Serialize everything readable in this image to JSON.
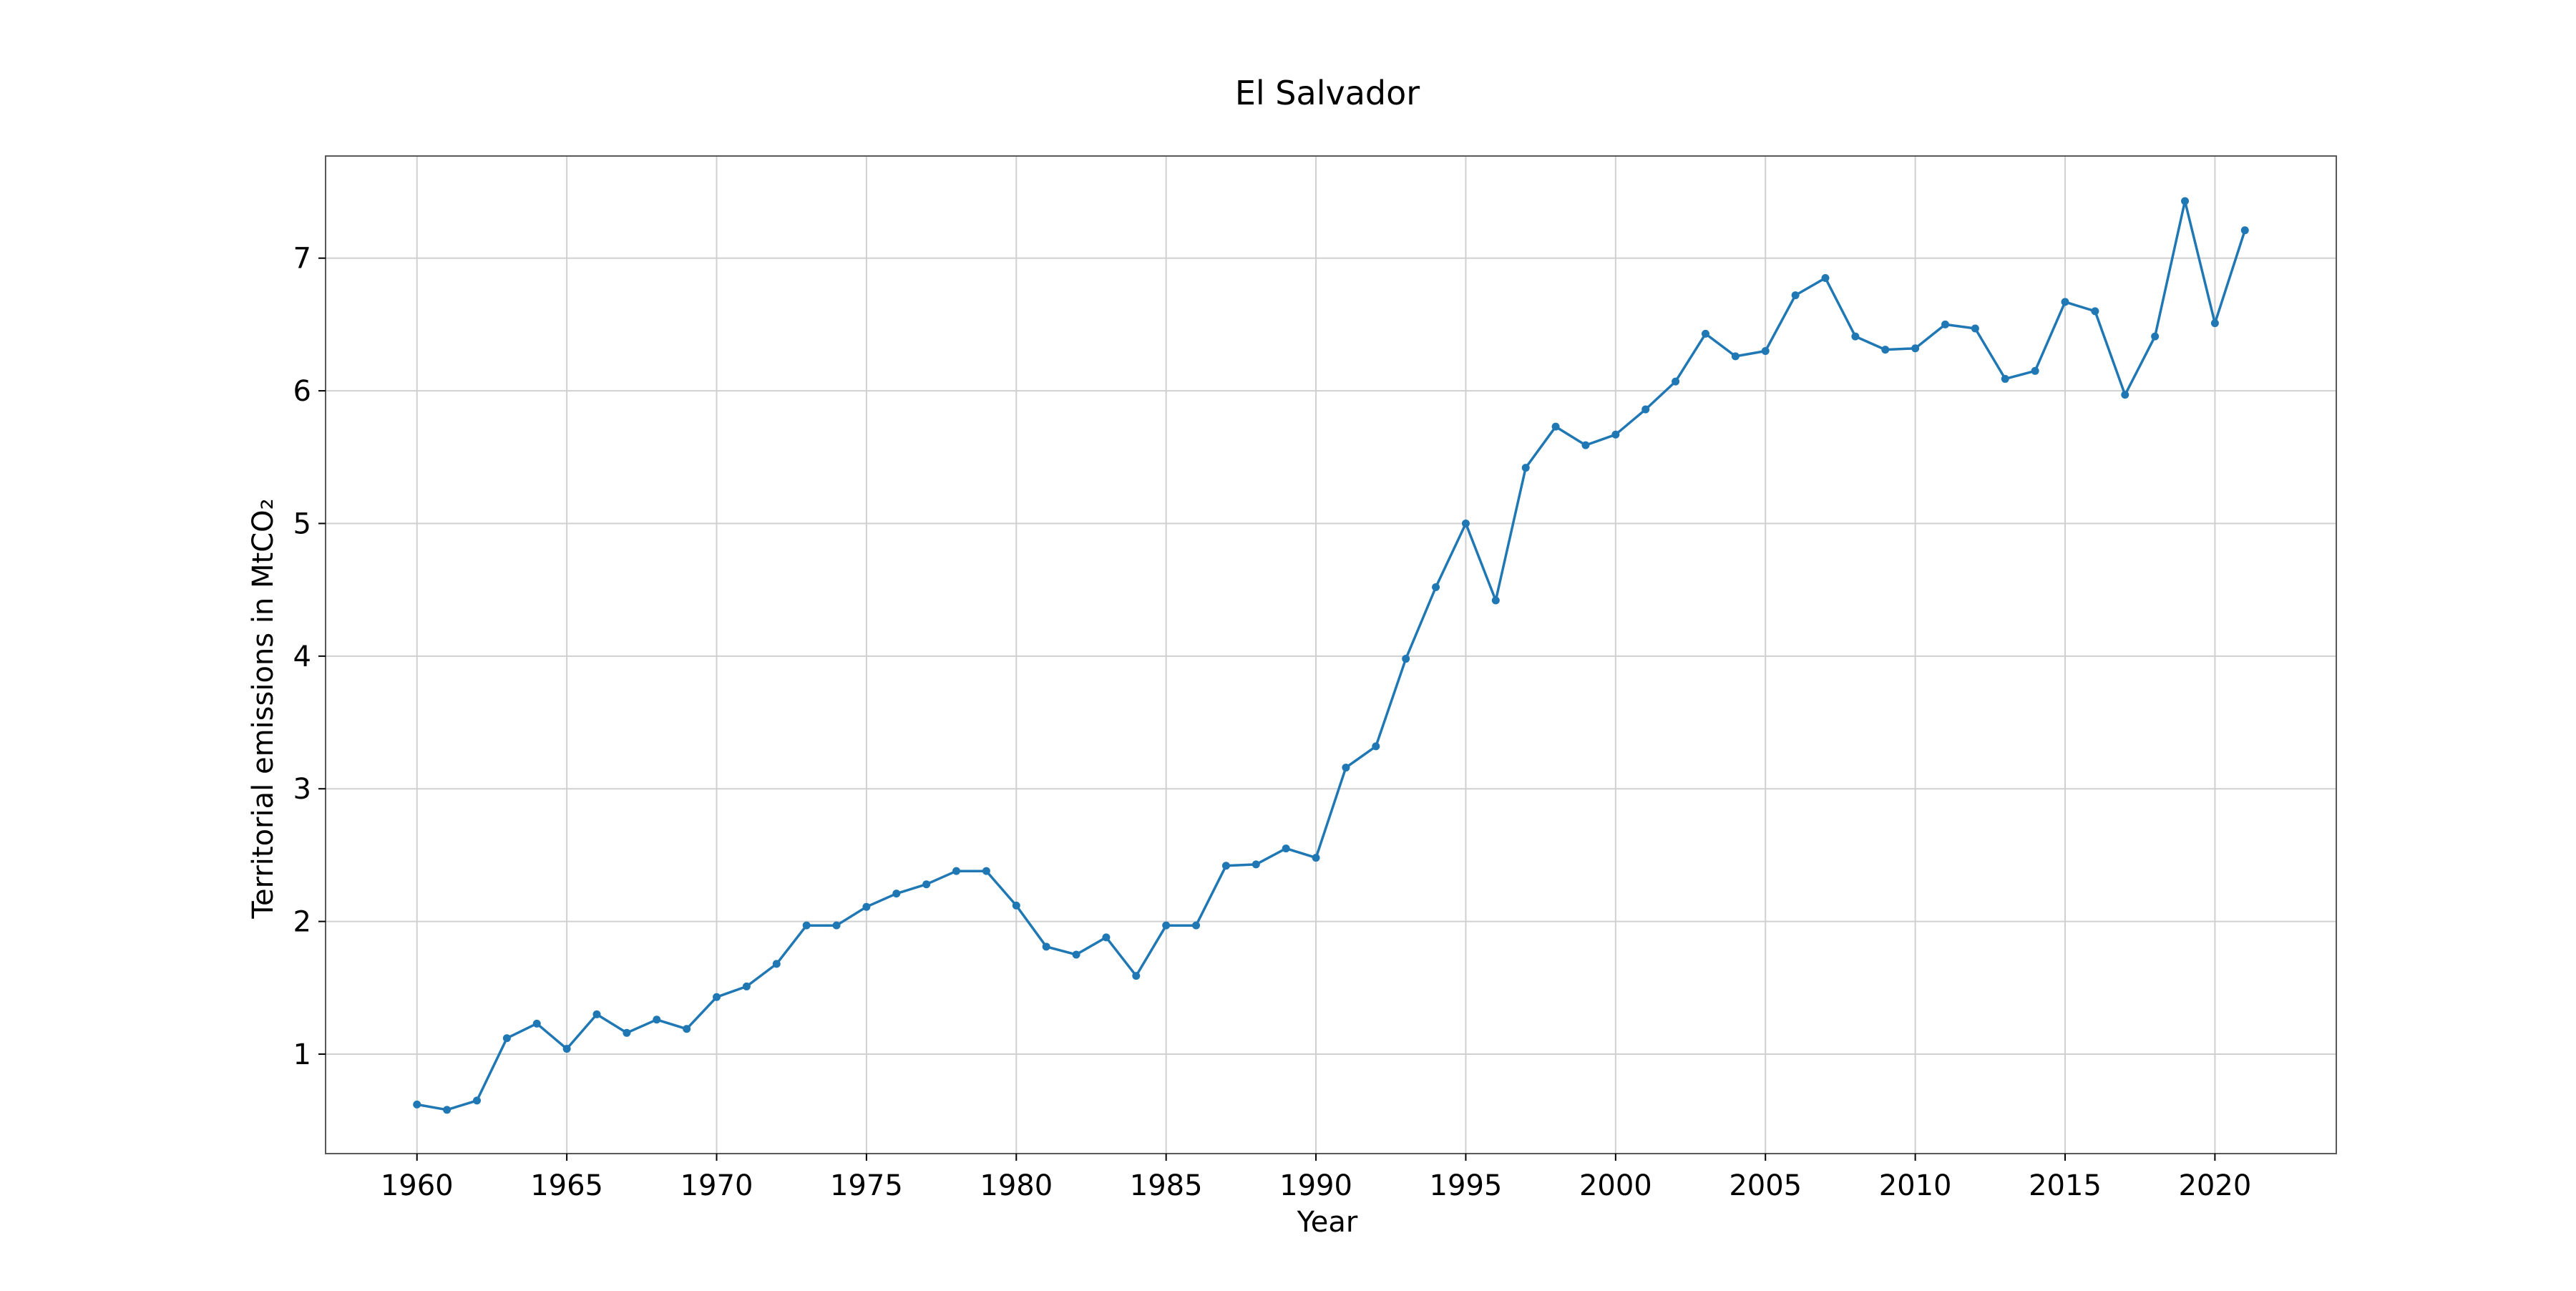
{
  "chart_data": {
    "type": "line",
    "title": "El Salvador",
    "xlabel": "Year",
    "ylabel": "Territorial emissions in MtCO₂",
    "xlim": [
      1956.95,
      2024.05
    ],
    "ylim": [
      0.25,
      7.77
    ],
    "grid": true,
    "x_ticks": [
      1960,
      1965,
      1970,
      1975,
      1980,
      1985,
      1990,
      1995,
      2000,
      2005,
      2010,
      2015,
      2020
    ],
    "y_ticks": [
      1,
      2,
      3,
      4,
      5,
      6,
      7
    ],
    "series": [
      {
        "color": "#1f77b4",
        "x": [
          1960,
          1961,
          1962,
          1963,
          1964,
          1965,
          1966,
          1967,
          1968,
          1969,
          1970,
          1971,
          1972,
          1973,
          1974,
          1975,
          1976,
          1977,
          1978,
          1979,
          1980,
          1981,
          1982,
          1983,
          1984,
          1985,
          1986,
          1987,
          1988,
          1989,
          1990,
          1991,
          1992,
          1993,
          1994,
          1995,
          1996,
          1997,
          1998,
          1999,
          2000,
          2001,
          2002,
          2003,
          2004,
          2005,
          2006,
          2007,
          2008,
          2009,
          2010,
          2011,
          2012,
          2013,
          2014,
          2015,
          2016,
          2017,
          2018,
          2019,
          2020,
          2021
        ],
        "y": [
          0.62,
          0.58,
          0.65,
          1.12,
          1.23,
          1.04,
          1.3,
          1.16,
          1.26,
          1.19,
          1.43,
          1.51,
          1.68,
          1.97,
          1.97,
          2.11,
          2.21,
          2.28,
          2.38,
          2.38,
          2.12,
          1.81,
          1.75,
          1.88,
          1.59,
          1.97,
          1.97,
          2.42,
          2.43,
          2.55,
          2.48,
          3.16,
          3.32,
          3.98,
          4.52,
          5.0,
          4.42,
          5.42,
          5.73,
          5.59,
          5.67,
          5.86,
          6.07,
          6.43,
          6.26,
          6.3,
          6.72,
          6.85,
          6.41,
          6.31,
          6.32,
          6.5,
          6.47,
          6.09,
          6.15,
          6.67,
          6.6,
          5.97,
          6.41,
          7.43,
          6.51,
          7.21
        ]
      }
    ]
  }
}
